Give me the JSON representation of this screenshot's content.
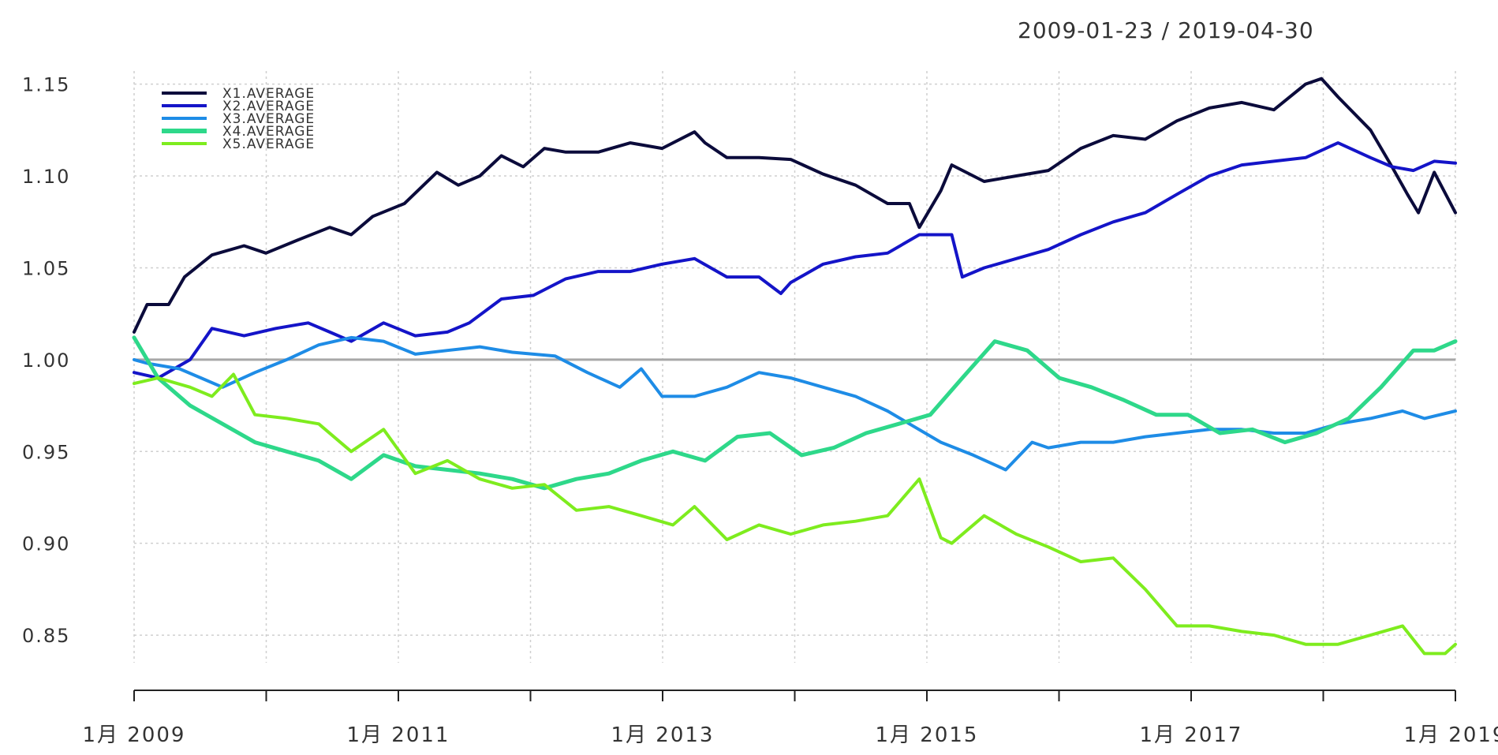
{
  "chart_data": {
    "type": "line",
    "title": "2009-01-23 / 2019-04-30",
    "xlabel": "",
    "ylabel": "",
    "x_tick_labels": [
      "1月 2009",
      "1月 2011",
      "1月 2013",
      "1月 2015",
      "1月 2017",
      "1月 2019"
    ],
    "x_range": [
      "2009-01-23",
      "2019-04-30"
    ],
    "y_tick_labels": [
      "0.85",
      "0.90",
      "0.95",
      "1.00",
      "1.05",
      "1.10",
      "1.15"
    ],
    "ylim": [
      0.835,
      1.155
    ],
    "grid": true,
    "reference_line": 1.0,
    "legend_position": "top-left",
    "series": [
      {
        "name": "X1.AVERAGE",
        "color": "#0b0b3b",
        "x": [
          "2009-01-23",
          "2009-03-01",
          "2009-05-01",
          "2009-06-15",
          "2009-09-01",
          "2009-12-01",
          "2010-02-01",
          "2010-05-01",
          "2010-08-01",
          "2010-10-01",
          "2010-12-01",
          "2011-03-01",
          "2011-06-01",
          "2011-08-01",
          "2011-10-01",
          "2011-12-01",
          "2012-02-01",
          "2012-04-01",
          "2012-06-01",
          "2012-09-01",
          "2012-12-01",
          "2013-03-01",
          "2013-06-01",
          "2013-07-01",
          "2013-09-01",
          "2013-12-01",
          "2014-03-01",
          "2014-06-01",
          "2014-09-01",
          "2014-12-01",
          "2015-02-01",
          "2015-03-01",
          "2015-05-01",
          "2015-06-01",
          "2015-09-01",
          "2015-12-01",
          "2016-03-01",
          "2016-06-01",
          "2016-09-01",
          "2016-12-01",
          "2017-03-01",
          "2017-06-01",
          "2017-09-01",
          "2017-12-01",
          "2018-03-01",
          "2018-04-15",
          "2018-06-01",
          "2018-09-01",
          "2018-11-01",
          "2018-12-15",
          "2019-01-15",
          "2019-03-01",
          "2019-04-30"
        ],
        "y": [
          1.015,
          1.03,
          1.03,
          1.045,
          1.057,
          1.062,
          1.058,
          1.065,
          1.072,
          1.068,
          1.078,
          1.085,
          1.102,
          1.095,
          1.1,
          1.111,
          1.105,
          1.115,
          1.113,
          1.113,
          1.118,
          1.115,
          1.124,
          1.118,
          1.11,
          1.11,
          1.109,
          1.101,
          1.095,
          1.085,
          1.085,
          1.072,
          1.092,
          1.106,
          1.097,
          1.1,
          1.103,
          1.115,
          1.122,
          1.12,
          1.13,
          1.137,
          1.14,
          1.136,
          1.15,
          1.153,
          1.143,
          1.125,
          1.105,
          1.09,
          1.08,
          1.102,
          1.08
        ]
      },
      {
        "name": "X2.AVERAGE",
        "color": "#1414c8",
        "x": [
          "2009-01-23",
          "2009-04-01",
          "2009-07-01",
          "2009-09-01",
          "2009-12-01",
          "2010-03-01",
          "2010-06-01",
          "2010-08-01",
          "2010-10-01",
          "2011-01-01",
          "2011-04-01",
          "2011-07-01",
          "2011-09-01",
          "2011-12-01",
          "2012-03-01",
          "2012-06-01",
          "2012-09-01",
          "2012-12-01",
          "2013-03-01",
          "2013-06-01",
          "2013-09-01",
          "2013-12-01",
          "2014-02-01",
          "2014-03-01",
          "2014-06-01",
          "2014-09-01",
          "2014-12-01",
          "2015-03-01",
          "2015-06-01",
          "2015-07-01",
          "2015-09-01",
          "2015-12-01",
          "2016-03-01",
          "2016-06-01",
          "2016-09-01",
          "2016-12-01",
          "2017-03-01",
          "2017-06-01",
          "2017-09-01",
          "2017-12-01",
          "2018-03-01",
          "2018-06-01",
          "2018-09-01",
          "2018-11-01",
          "2019-01-01",
          "2019-03-01",
          "2019-04-30"
        ],
        "y": [
          0.993,
          0.99,
          1.0,
          1.017,
          1.013,
          1.017,
          1.02,
          1.015,
          1.01,
          1.02,
          1.013,
          1.015,
          1.02,
          1.033,
          1.035,
          1.044,
          1.048,
          1.048,
          1.052,
          1.055,
          1.045,
          1.045,
          1.036,
          1.042,
          1.052,
          1.056,
          1.058,
          1.068,
          1.068,
          1.045,
          1.05,
          1.055,
          1.06,
          1.068,
          1.075,
          1.08,
          1.09,
          1.1,
          1.106,
          1.108,
          1.11,
          1.118,
          1.11,
          1.105,
          1.103,
          1.108,
          1.107
        ]
      },
      {
        "name": "X3.AVERAGE",
        "color": "#1e8ce6",
        "x": [
          "2009-01-23",
          "2009-03-01",
          "2009-06-01",
          "2009-08-01",
          "2009-10-01",
          "2010-01-01",
          "2010-04-01",
          "2010-07-01",
          "2010-10-01",
          "2011-01-01",
          "2011-04-01",
          "2011-07-01",
          "2011-10-01",
          "2012-01-01",
          "2012-03-01",
          "2012-05-01",
          "2012-08-01",
          "2012-11-01",
          "2013-01-01",
          "2013-03-01",
          "2013-06-01",
          "2013-09-01",
          "2013-12-01",
          "2014-03-01",
          "2014-06-01",
          "2014-09-01",
          "2014-12-01",
          "2015-02-01",
          "2015-05-01",
          "2015-08-01",
          "2015-11-01",
          "2016-01-15",
          "2016-03-01",
          "2016-06-01",
          "2016-09-01",
          "2016-12-01",
          "2017-03-01",
          "2017-06-01",
          "2017-09-01",
          "2017-12-01",
          "2018-03-01",
          "2018-06-01",
          "2018-09-01",
          "2018-12-01",
          "2019-02-01",
          "2019-04-30"
        ],
        "y": [
          1.0,
          0.998,
          0.995,
          0.99,
          0.985,
          0.993,
          1.0,
          1.008,
          1.012,
          1.01,
          1.003,
          1.005,
          1.007,
          1.004,
          1.003,
          1.002,
          0.993,
          0.985,
          0.995,
          0.98,
          0.98,
          0.985,
          0.993,
          0.99,
          0.985,
          0.98,
          0.972,
          0.965,
          0.955,
          0.948,
          0.94,
          0.955,
          0.952,
          0.955,
          0.955,
          0.958,
          0.96,
          0.962,
          0.962,
          0.96,
          0.96,
          0.965,
          0.968,
          0.972,
          0.968,
          0.972
        ]
      },
      {
        "name": "X4.AVERAGE",
        "color": "#2ed88a",
        "x": [
          "2009-01-23",
          "2009-04-01",
          "2009-07-01",
          "2009-10-01",
          "2010-01-01",
          "2010-04-01",
          "2010-07-01",
          "2010-10-01",
          "2011-01-01",
          "2011-04-01",
          "2011-07-01",
          "2011-10-01",
          "2012-01-01",
          "2012-04-01",
          "2012-07-01",
          "2012-10-01",
          "2013-01-01",
          "2013-04-01",
          "2013-07-01",
          "2013-10-01",
          "2014-01-01",
          "2014-04-01",
          "2014-07-01",
          "2014-10-01",
          "2015-01-01",
          "2015-04-01",
          "2015-07-01",
          "2015-10-01",
          "2016-01-01",
          "2016-04-01",
          "2016-07-01",
          "2016-10-01",
          "2017-01-01",
          "2017-04-01",
          "2017-07-01",
          "2017-10-01",
          "2018-01-01",
          "2018-04-01",
          "2018-07-01",
          "2018-10-01",
          "2019-01-01",
          "2019-03-01",
          "2019-04-30"
        ],
        "y": [
          1.012,
          0.99,
          0.975,
          0.965,
          0.955,
          0.95,
          0.945,
          0.935,
          0.948,
          0.942,
          0.94,
          0.938,
          0.935,
          0.93,
          0.935,
          0.938,
          0.945,
          0.95,
          0.945,
          0.958,
          0.96,
          0.948,
          0.952,
          0.96,
          0.965,
          0.97,
          0.99,
          1.01,
          1.005,
          0.99,
          0.985,
          0.978,
          0.97,
          0.97,
          0.96,
          0.962,
          0.955,
          0.96,
          0.968,
          0.985,
          1.005,
          1.005,
          1.01
        ]
      },
      {
        "name": "X5.AVERAGE",
        "color": "#7eec1e",
        "x": [
          "2009-01-23",
          "2009-04-01",
          "2009-07-01",
          "2009-09-01",
          "2009-11-01",
          "2010-01-01",
          "2010-04-01",
          "2010-07-01",
          "2010-10-01",
          "2011-01-01",
          "2011-04-01",
          "2011-07-01",
          "2011-10-01",
          "2012-01-01",
          "2012-04-01",
          "2012-07-01",
          "2012-10-01",
          "2013-01-01",
          "2013-04-01",
          "2013-06-01",
          "2013-09-01",
          "2013-12-01",
          "2014-03-01",
          "2014-06-01",
          "2014-09-01",
          "2014-12-01",
          "2015-03-01",
          "2015-05-01",
          "2015-06-01",
          "2015-09-01",
          "2015-12-01",
          "2016-03-01",
          "2016-06-01",
          "2016-09-01",
          "2016-12-01",
          "2017-03-01",
          "2017-06-01",
          "2017-09-01",
          "2017-12-01",
          "2018-03-01",
          "2018-06-01",
          "2018-09-01",
          "2018-12-01",
          "2019-02-01",
          "2019-04-01",
          "2019-04-30"
        ],
        "y": [
          0.987,
          0.99,
          0.985,
          0.98,
          0.992,
          0.97,
          0.968,
          0.965,
          0.95,
          0.962,
          0.938,
          0.945,
          0.935,
          0.93,
          0.932,
          0.918,
          0.92,
          0.915,
          0.91,
          0.92,
          0.902,
          0.91,
          0.905,
          0.91,
          0.912,
          0.915,
          0.935,
          0.903,
          0.9,
          0.915,
          0.905,
          0.898,
          0.89,
          0.892,
          0.875,
          0.855,
          0.855,
          0.852,
          0.85,
          0.845,
          0.845,
          0.85,
          0.855,
          0.84,
          0.84,
          0.845
        ]
      }
    ]
  }
}
